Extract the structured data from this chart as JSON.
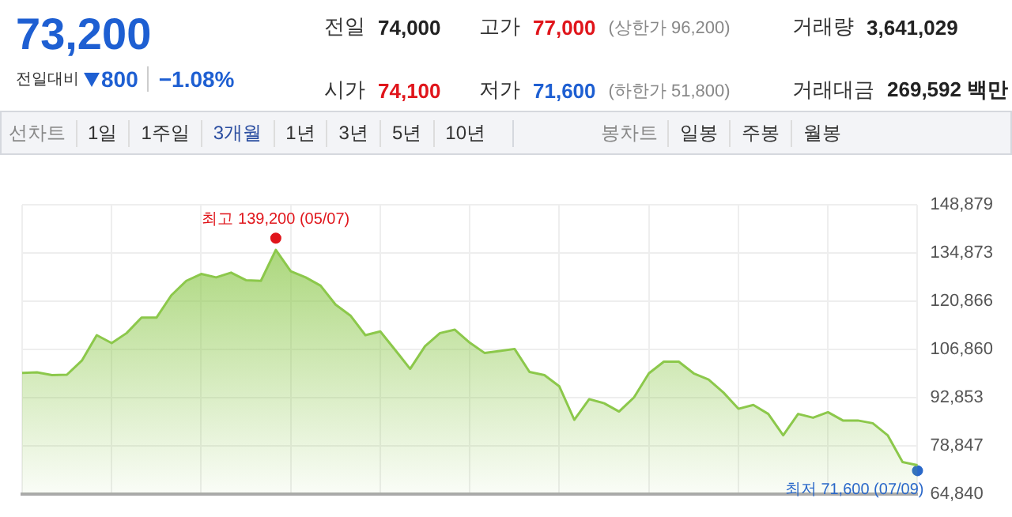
{
  "chart_data": {
    "type": "area",
    "categories": [
      null,
      null,
      null,
      null,
      null,
      null,
      null,
      null,
      null,
      null,
      null,
      null,
      null,
      null,
      null,
      null,
      null,
      null,
      null,
      null,
      null,
      null,
      null,
      null,
      null,
      null,
      null,
      null,
      null,
      null,
      null,
      null,
      null,
      null,
      null,
      null,
      null,
      null,
      null,
      null,
      null,
      null,
      null,
      null,
      null,
      null,
      null,
      null,
      null,
      null,
      null,
      null,
      null,
      null,
      null,
      null,
      null,
      null,
      null,
      null,
      null
    ],
    "series": [
      {
        "color": "#8cc84b",
        "values": [
          100000,
          100200,
          99400,
          99500,
          103600,
          111000,
          108700,
          111600,
          116100,
          116100,
          122600,
          126800,
          128800,
          127800,
          129200,
          127000,
          126800,
          135800,
          129600,
          127800,
          125400,
          119900,
          116700,
          111000,
          112100,
          106700,
          101200,
          107800,
          111600,
          112600,
          108800,
          105800,
          106400,
          107000,
          100300,
          99400,
          96100,
          86400,
          92400,
          91200,
          88800,
          92900,
          99900,
          103300,
          103300,
          99900,
          98100,
          94300,
          89600,
          90700,
          88100,
          81900,
          88100,
          87000,
          88600,
          86200,
          86200,
          85400,
          81900,
          74100,
          73200
        ]
      },
      {
        "type": "scatter",
        "color": "#e0151b",
        "values": [
          null,
          null,
          null,
          null,
          null,
          null,
          null,
          null,
          null,
          null,
          null,
          null,
          null,
          null,
          null,
          null,
          null,
          139200,
          null,
          null,
          null,
          null,
          null,
          null,
          null,
          null,
          null,
          null,
          null,
          null,
          null,
          null,
          null,
          null,
          null,
          null,
          null,
          null,
          null,
          null,
          null,
          null,
          null,
          null,
          null,
          null,
          null,
          null,
          null,
          null,
          null,
          null,
          null,
          null,
          null,
          null,
          null,
          null,
          null,
          null,
          null
        ]
      },
      {
        "type": "scatter",
        "color": "#2a68c9",
        "values": [
          null,
          null,
          null,
          null,
          null,
          null,
          null,
          null,
          null,
          null,
          null,
          null,
          null,
          null,
          null,
          null,
          null,
          null,
          null,
          null,
          null,
          null,
          null,
          null,
          null,
          null,
          null,
          null,
          null,
          null,
          null,
          null,
          null,
          null,
          null,
          null,
          null,
          null,
          null,
          null,
          null,
          null,
          null,
          null,
          null,
          null,
          null,
          null,
          null,
          null,
          null,
          null,
          null,
          null,
          null,
          null,
          null,
          null,
          null,
          null,
          71600
        ]
      }
    ],
    "ylim": [
      64840,
      148879
    ],
    "yticks": [
      {
        "value": 64840,
        "label": "64,840"
      },
      {
        "value": 78847,
        "label": "78,847"
      },
      {
        "value": 92853,
        "label": "92,853"
      },
      {
        "value": 106860,
        "label": "106,860"
      },
      {
        "value": 120866,
        "label": "120,866"
      },
      {
        "value": 134873,
        "label": "134,873"
      },
      {
        "value": 148879,
        "label": "148,879"
      }
    ],
    "tick_labels": "y",
    "grid": true,
    "legend": false,
    "annotations": [
      "73,200",
      "전일대비",
      "800",
      "−1.08%",
      "전일",
      "74,000",
      "고가",
      "77,000",
      "(상한가 96,200)",
      "거래량",
      "3,641,029",
      "시가",
      "74,100",
      "저가",
      "71,600",
      "(하한가 51,800)",
      "거래대금",
      "269,592 백만",
      "선차트",
      "1일",
      "1주일",
      "3개월",
      "1년",
      "3년",
      "5년",
      "10년",
      "봉차트",
      "일봉",
      "주봉",
      "월봉",
      "최고 139,200 (05/07)",
      "최저 71,600 (07/09)"
    ]
  }
}
